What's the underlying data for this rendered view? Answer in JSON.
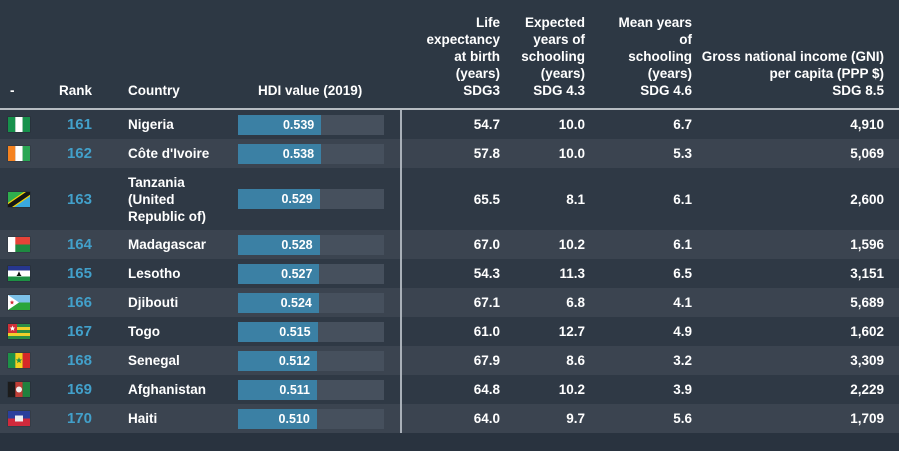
{
  "table": {
    "columns": [
      {
        "key": "flag",
        "label": "-",
        "sdg": ""
      },
      {
        "key": "rank",
        "label": "Rank",
        "sdg": ""
      },
      {
        "key": "country",
        "label": "Country",
        "sdg": ""
      },
      {
        "key": "hdi",
        "label": "HDI value (2019)",
        "sdg": ""
      },
      {
        "key": "life",
        "label": "Life expectancy at birth (years)",
        "sdg": "SDG3"
      },
      {
        "key": "eys",
        "label": "Expected years of schooling (years)",
        "sdg": "SDG 4.3"
      },
      {
        "key": "mys",
        "label": "Mean years of schooling (years)",
        "sdg": "SDG 4.6"
      },
      {
        "key": "gni",
        "label": "Gross national income (GNI) per capita (PPP $)",
        "sdg": "SDG 8.5"
      }
    ],
    "hdi_bar_scale_max": 0.945,
    "rows": [
      {
        "rank": "161",
        "country": "Nigeria",
        "hdi": "0.539",
        "life": "54.7",
        "eys": "10.0",
        "mys": "6.7",
        "gni": "4,910",
        "flag": {
          "type": "v",
          "name": "nigeria-flag",
          "stripes": [
            "#17914c",
            "#ffffff",
            "#17914c"
          ]
        }
      },
      {
        "rank": "162",
        "country": "Côte d'Ivoire",
        "hdi": "0.538",
        "life": "57.8",
        "eys": "10.0",
        "mys": "5.3",
        "gni": "5,069",
        "flag": {
          "type": "v",
          "name": "cote-divoire-flag",
          "stripes": [
            "#f58220",
            "#ffffff",
            "#2aa654"
          ]
        }
      },
      {
        "rank": "163",
        "country": "Tanzania (United Republic of)",
        "hdi": "0.529",
        "life": "65.5",
        "eys": "8.1",
        "mys": "6.1",
        "gni": "2,600",
        "flag": {
          "type": "tz",
          "name": "tanzania-flag",
          "top": "#2fae4e",
          "bottom": "#3aa8de",
          "band": "#151515",
          "edge": "#f2cf08"
        }
      },
      {
        "rank": "164",
        "country": "Madagascar",
        "hdi": "0.528",
        "life": "67.0",
        "eys": "10.2",
        "mys": "6.1",
        "gni": "1,596",
        "flag": {
          "type": "mg",
          "name": "madagascar-flag",
          "left": "#ffffff",
          "top": "#e64338",
          "bottom": "#1e8a41"
        }
      },
      {
        "rank": "165",
        "country": "Lesotho",
        "hdi": "0.527",
        "life": "54.3",
        "eys": "11.3",
        "mys": "6.5",
        "gni": "3,151",
        "flag": {
          "type": "ls",
          "name": "lesotho-flag",
          "stripes": [
            "#26368f",
            "#ffffff",
            "#1d9144"
          ],
          "emblem": "#111111"
        }
      },
      {
        "rank": "166",
        "country": "Djibouti",
        "hdi": "0.524",
        "life": "67.1",
        "eys": "6.8",
        "mys": "4.1",
        "gni": "5,689",
        "flag": {
          "type": "dj",
          "name": "djibouti-flag",
          "top": "#7cc1e8",
          "bottom": "#2aa53a",
          "triangle": "#ffffff",
          "star": "#d22730"
        }
      },
      {
        "rank": "167",
        "country": "Togo",
        "hdi": "0.515",
        "life": "61.0",
        "eys": "12.7",
        "mys": "4.9",
        "gni": "1,602",
        "flag": {
          "type": "tg",
          "name": "togo-flag",
          "green": "#2b8d46",
          "yellow": "#f0d02a",
          "canton": "#cf3038",
          "star": "#ffffff"
        }
      },
      {
        "rank": "168",
        "country": "Senegal",
        "hdi": "0.512",
        "life": "67.9",
        "eys": "8.6",
        "mys": "3.2",
        "gni": "3,309",
        "flag": {
          "type": "v3star",
          "name": "senegal-flag",
          "stripes": [
            "#1e9148",
            "#f5d21f",
            "#d62828"
          ],
          "star": "#1e9148"
        }
      },
      {
        "rank": "169",
        "country": "Afghanistan",
        "hdi": "0.511",
        "life": "64.8",
        "eys": "10.2",
        "mys": "3.9",
        "gni": "2,229",
        "flag": {
          "type": "v3emblem",
          "name": "afghanistan-flag",
          "stripes": [
            "#1c1c1c",
            "#bf3d35",
            "#20803d"
          ],
          "emblem": "#f0f0f0"
        }
      },
      {
        "rank": "170",
        "country": "Haiti",
        "hdi": "0.510",
        "life": "64.0",
        "eys": "9.7",
        "mys": "5.6",
        "gni": "1,709",
        "flag": {
          "type": "ht",
          "name": "haiti-flag",
          "top": "#2b3f9c",
          "bottom": "#d12a3c",
          "panel": "#eceff1"
        }
      }
    ]
  },
  "colors": {
    "rank_link": "#42a0ca",
    "bar_fill": "#3b80a4",
    "bar_track": "#46505d",
    "row_dark": "#2f3945",
    "row_light": "#3b4450",
    "header_bg": "#2d3844",
    "divider": "#a9b0b8"
  }
}
